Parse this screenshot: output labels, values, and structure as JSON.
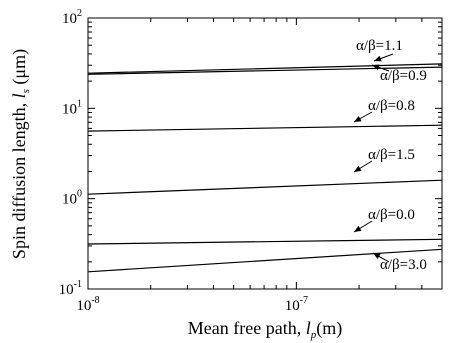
{
  "chart_data": {
    "type": "line",
    "x_scale": "log",
    "y_scale": "log",
    "xlim": [
      1e-08,
      5e-07
    ],
    "ylim": [
      0.1,
      100
    ],
    "grid": false,
    "legend": "none",
    "xlabel": {
      "text": "Mean free path, ",
      "symbol": "l",
      "subscript": "p",
      "unit": "(m)"
    },
    "ylabel": {
      "text": "Spin diffusion length, ",
      "symbol": "l",
      "subscript": "s",
      "unit": " (μm)"
    },
    "x_ticks": [
      {
        "base": "10",
        "exp": "-8",
        "value": 1e-08
      },
      {
        "base": "10",
        "exp": "-7",
        "value": 1e-07
      }
    ],
    "y_ticks": [
      {
        "base": "10",
        "exp": "-1",
        "value": 0.1
      },
      {
        "base": "10",
        "exp": "0",
        "value": 1
      },
      {
        "base": "10",
        "exp": "1",
        "value": 10
      },
      {
        "base": "10",
        "exp": "2",
        "value": 100
      }
    ],
    "series": [
      {
        "label": "α/β=1.1",
        "x": [
          1e-08,
          5e-07
        ],
        "y": [
          24.5,
          31.0
        ]
      },
      {
        "label": "α/β=0.9",
        "x": [
          1e-08,
          5e-07
        ],
        "y": [
          23.8,
          28.6
        ]
      },
      {
        "label": "α/β=0.8",
        "x": [
          1e-08,
          5e-07
        ],
        "y": [
          5.6,
          6.5
        ]
      },
      {
        "label": "α/β=1.5",
        "x": [
          1e-08,
          5e-07
        ],
        "y": [
          1.12,
          1.6
        ]
      },
      {
        "label": "α/β=0.0",
        "x": [
          1e-08,
          5e-07
        ],
        "y": [
          0.315,
          0.355
        ]
      },
      {
        "label": "α/β=3.0",
        "x": [
          1e-08,
          5e-07
        ],
        "y": [
          0.155,
          0.275
        ]
      }
    ]
  }
}
